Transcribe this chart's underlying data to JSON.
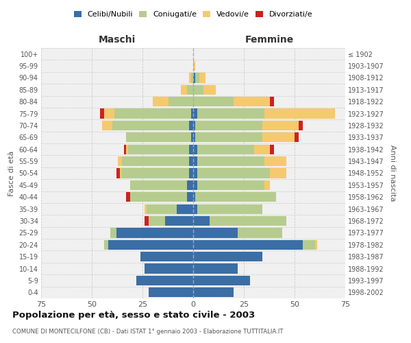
{
  "age_groups": [
    "0-4",
    "5-9",
    "10-14",
    "15-19",
    "20-24",
    "25-29",
    "30-34",
    "35-39",
    "40-44",
    "45-49",
    "50-54",
    "55-59",
    "60-64",
    "65-69",
    "70-74",
    "75-79",
    "80-84",
    "85-89",
    "90-94",
    "95-99",
    "100+"
  ],
  "birth_years": [
    "1998-2002",
    "1993-1997",
    "1988-1992",
    "1983-1987",
    "1978-1982",
    "1973-1977",
    "1968-1972",
    "1963-1967",
    "1958-1962",
    "1953-1957",
    "1948-1952",
    "1943-1947",
    "1938-1942",
    "1933-1937",
    "1928-1932",
    "1923-1927",
    "1918-1922",
    "1913-1917",
    "1908-1912",
    "1903-1907",
    "≤ 1902"
  ],
  "colors": {
    "celibe": "#3a6ea5",
    "coniugato": "#b5cc8e",
    "vedovo": "#f5c96e",
    "divorziato": "#cc2222"
  },
  "male": {
    "celibe": [
      22,
      28,
      24,
      26,
      42,
      38,
      14,
      8,
      3,
      3,
      2,
      2,
      2,
      1,
      2,
      1,
      0,
      0,
      0,
      0,
      0
    ],
    "coniugato": [
      0,
      0,
      0,
      0,
      2,
      3,
      8,
      15,
      28,
      28,
      33,
      33,
      30,
      32,
      38,
      38,
      12,
      3,
      1,
      0,
      0
    ],
    "vedovo": [
      0,
      0,
      0,
      0,
      0,
      0,
      0,
      1,
      0,
      0,
      1,
      2,
      1,
      0,
      5,
      5,
      8,
      3,
      1,
      0,
      0
    ],
    "divorziato": [
      0,
      0,
      0,
      0,
      0,
      0,
      2,
      0,
      2,
      0,
      2,
      0,
      1,
      0,
      0,
      2,
      0,
      0,
      0,
      0,
      0
    ]
  },
  "female": {
    "nubile": [
      20,
      28,
      22,
      34,
      54,
      22,
      8,
      2,
      1,
      2,
      2,
      2,
      2,
      1,
      1,
      2,
      0,
      0,
      1,
      0,
      0
    ],
    "coniugata": [
      0,
      0,
      0,
      0,
      6,
      22,
      38,
      32,
      40,
      33,
      36,
      33,
      28,
      33,
      33,
      33,
      20,
      5,
      2,
      0,
      0
    ],
    "vedova": [
      0,
      0,
      0,
      0,
      1,
      0,
      0,
      0,
      0,
      3,
      8,
      11,
      8,
      16,
      18,
      35,
      18,
      6,
      3,
      1,
      0
    ],
    "divorziata": [
      0,
      0,
      0,
      0,
      0,
      0,
      0,
      0,
      0,
      0,
      0,
      0,
      2,
      2,
      2,
      0,
      2,
      0,
      0,
      0,
      0
    ]
  },
  "xlim": 75,
  "title": "Popolazione per età, sesso e stato civile - 2003",
  "subtitle": "COMUNE DI MONTECILFONE (CB) - Dati ISTAT 1° gennaio 2003 - Elaborazione TUTTITALIA.IT",
  "xlabel_left": "Maschi",
  "xlabel_right": "Femmine",
  "ylabel_left": "Fasce di età",
  "ylabel_right": "Anni di nascita",
  "bg_color": "#f0f0f0",
  "grid_color": "#cccccc"
}
